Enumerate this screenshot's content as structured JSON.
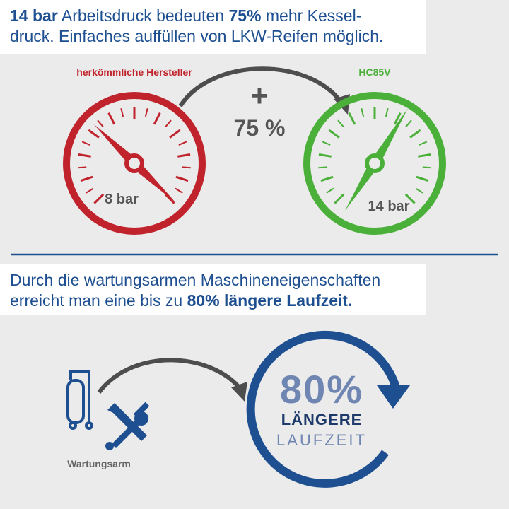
{
  "section1": {
    "headline": {
      "line1": [
        "14 bar",
        " Arbeitsdruck bedeuten ",
        "75%",
        " mehr Kessel-"
      ],
      "line2": [
        "druck. Einfaches auffüllen von LKW-Reifen möglich."
      ]
    },
    "left_gauge": {
      "label": "herkömmliche Hersteller",
      "value_text": "8 bar"
    },
    "right_gauge": {
      "label": "HC85V",
      "value_text": "14 bar"
    },
    "plus": "+",
    "increase": "75 %"
  },
  "section2": {
    "headline": {
      "line1": [
        "Durch die wartungsarmen Maschineneigenschaften"
      ],
      "line2": [
        "erreicht man eine bis zu ",
        "80% längere Laufzeit."
      ]
    },
    "icon_caption": "Wartungsarm",
    "badge": {
      "percent": "80%",
      "line1": "LÄNGERE",
      "line2": "LAUFZEIT"
    }
  }
}
